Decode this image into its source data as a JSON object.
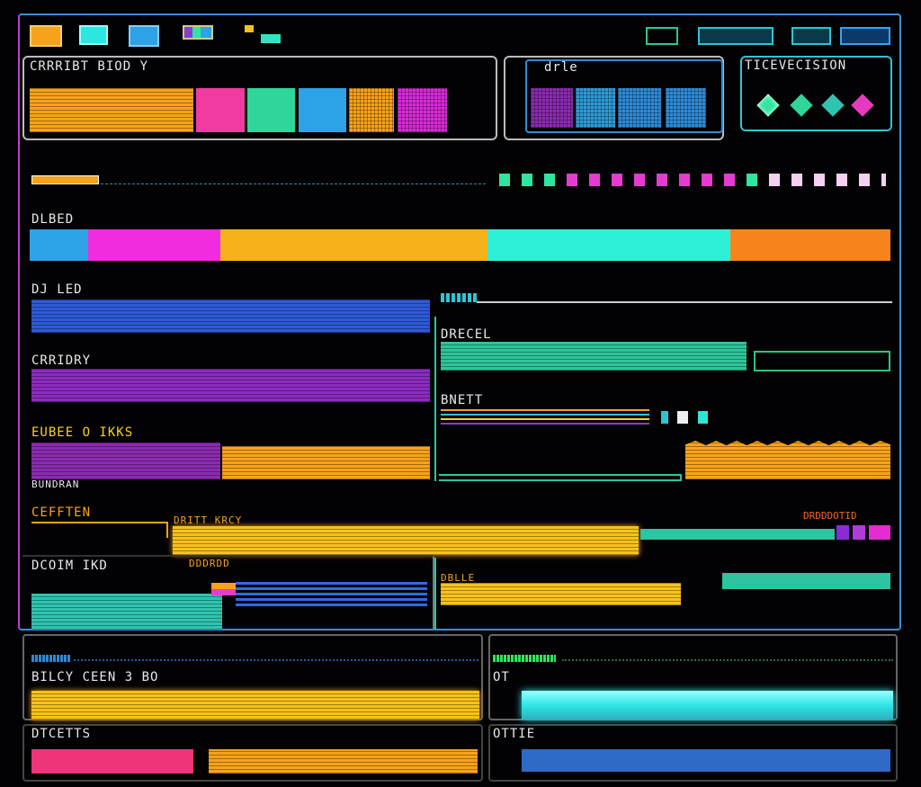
{
  "labels": {
    "palette": "CRRRIBT BIOD Y",
    "texture": "drle",
    "precision": "TICEVECISION",
    "bar_main": "DLBED",
    "bar_blue": "DJ LED",
    "bar_purple": "CRRIDRY",
    "bar_split": "EUBEE O IKKS",
    "bar_small": "BUNDRAN",
    "section": "CEFFTEN",
    "track": "DRITT KRCY",
    "track_right": "DRDDDOTID",
    "left_lower": "DCOIM IKD",
    "left_lower_sub": "DDDRDD",
    "right_green": "DRECEL",
    "right_lines": "BNETT",
    "right_yellow": "DBLLE",
    "bottom_left": "BILCY CEEN 3 BO",
    "bottom_right": "OT",
    "foot_left": "DTCETTS",
    "foot_right": "OTTIE"
  }
}
